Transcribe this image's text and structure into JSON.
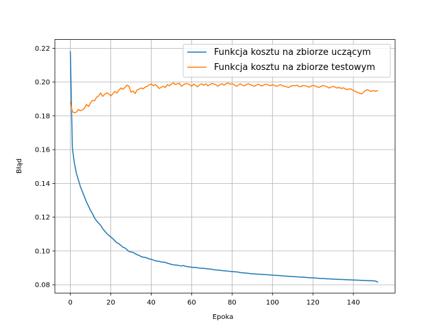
{
  "chart_data": {
    "type": "line",
    "title": "",
    "xlabel": "Epoka",
    "ylabel": "Błąd",
    "xlim": [
      -7.65,
      160.65
    ],
    "ylim": [
      0.0751,
      0.2252
    ],
    "xticks": [
      0,
      20,
      40,
      60,
      80,
      100,
      120,
      140
    ],
    "yticks": [
      0.08,
      0.1,
      0.12,
      0.14,
      0.16,
      0.18,
      0.2,
      0.22
    ],
    "ytick_labels": [
      "0.08",
      "0.10",
      "0.12",
      "0.14",
      "0.16",
      "0.18",
      "0.20",
      "0.22"
    ],
    "grid": true,
    "legend_position": "top-right",
    "series": [
      {
        "name": "Funkcja kosztu na zbiorze uczącym",
        "color": "#1f77b4",
        "x": [
          0,
          1,
          2,
          3,
          4,
          5,
          6,
          7,
          8,
          9,
          10,
          11,
          12,
          13,
          14,
          15,
          16,
          17,
          18,
          19,
          20,
          21,
          22,
          23,
          24,
          25,
          26,
          27,
          28,
          29,
          30,
          31,
          32,
          33,
          34,
          35,
          36,
          37,
          38,
          39,
          40,
          41,
          42,
          43,
          44,
          45,
          46,
          47,
          48,
          49,
          50,
          51,
          52,
          53,
          54,
          55,
          56,
          57,
          58,
          59,
          60,
          61,
          62,
          63,
          64,
          65,
          66,
          67,
          68,
          69,
          70,
          71,
          72,
          73,
          74,
          75,
          76,
          77,
          78,
          79,
          80,
          81,
          82,
          83,
          84,
          85,
          86,
          87,
          88,
          89,
          90,
          91,
          92,
          93,
          94,
          95,
          96,
          97,
          98,
          99,
          100,
          101,
          102,
          103,
          104,
          105,
          106,
          107,
          108,
          109,
          110,
          111,
          112,
          113,
          114,
          115,
          116,
          117,
          118,
          119,
          120,
          121,
          122,
          123,
          124,
          125,
          126,
          127,
          128,
          129,
          130,
          131,
          132,
          133,
          134,
          135,
          136,
          137,
          138,
          139,
          140,
          141,
          142,
          143,
          144,
          145,
          146,
          147,
          148,
          149,
          150,
          151,
          152
        ],
        "values": [
          0.218,
          0.161,
          0.152,
          0.146,
          0.142,
          0.138,
          0.135,
          0.132,
          0.129,
          0.1265,
          0.124,
          0.122,
          0.1195,
          0.1178,
          0.1165,
          0.1152,
          0.1132,
          0.1118,
          0.1104,
          0.1093,
          0.1083,
          0.1073,
          0.1061,
          0.1049,
          0.1043,
          0.1033,
          0.1022,
          0.1018,
          0.1008,
          0.0997,
          0.0995,
          0.0991,
          0.0985,
          0.0978,
          0.0974,
          0.0967,
          0.0963,
          0.0962,
          0.0958,
          0.0953,
          0.0951,
          0.0947,
          0.0942,
          0.094,
          0.0938,
          0.0935,
          0.0934,
          0.0932,
          0.0928,
          0.0924,
          0.0921,
          0.0918,
          0.0917,
          0.0916,
          0.0913,
          0.0911,
          0.0914,
          0.0909,
          0.0907,
          0.0905,
          0.0904,
          0.0902,
          0.0903,
          0.09,
          0.0899,
          0.0897,
          0.0898,
          0.0895,
          0.0894,
          0.0893,
          0.0892,
          0.0889,
          0.0888,
          0.0887,
          0.0886,
          0.0884,
          0.0883,
          0.0882,
          0.0881,
          0.0879,
          0.0878,
          0.0877,
          0.0876,
          0.0875,
          0.0872,
          0.0871,
          0.087,
          0.0869,
          0.0868,
          0.0866,
          0.0865,
          0.0864,
          0.0863,
          0.0863,
          0.0862,
          0.0861,
          0.086,
          0.086,
          0.0859,
          0.0858,
          0.0857,
          0.0856,
          0.0856,
          0.0855,
          0.0854,
          0.0853,
          0.0852,
          0.0851,
          0.085,
          0.0849,
          0.0849,
          0.0848,
          0.0847,
          0.0846,
          0.0845,
          0.0845,
          0.0844,
          0.0843,
          0.0842,
          0.0841,
          0.0841,
          0.084,
          0.0839,
          0.0838,
          0.0837,
          0.0837,
          0.0836,
          0.0835,
          0.0835,
          0.0834,
          0.0833,
          0.0833,
          0.0832,
          0.0832,
          0.0831,
          0.0831,
          0.083,
          0.083,
          0.0829,
          0.0829,
          0.0828,
          0.0828,
          0.0827,
          0.0827,
          0.0826,
          0.0826,
          0.0825,
          0.0825,
          0.0824,
          0.0824,
          0.0823,
          0.0822,
          0.0816
        ]
      },
      {
        "name": "Funkcja kosztu na zbiorze testowym",
        "color": "#ff7f0e",
        "x": [
          0,
          1,
          2,
          3,
          4,
          5,
          6,
          7,
          8,
          9,
          10,
          11,
          12,
          13,
          14,
          15,
          16,
          17,
          18,
          19,
          20,
          21,
          22,
          23,
          24,
          25,
          26,
          27,
          28,
          29,
          30,
          31,
          32,
          33,
          34,
          35,
          36,
          37,
          38,
          39,
          40,
          41,
          42,
          43,
          44,
          45,
          46,
          47,
          48,
          49,
          50,
          51,
          52,
          53,
          54,
          55,
          56,
          57,
          58,
          59,
          60,
          61,
          62,
          63,
          64,
          65,
          66,
          67,
          68,
          69,
          70,
          71,
          72,
          73,
          74,
          75,
          76,
          77,
          78,
          79,
          80,
          81,
          82,
          83,
          84,
          85,
          86,
          87,
          88,
          89,
          90,
          91,
          92,
          93,
          94,
          95,
          96,
          97,
          98,
          99,
          100,
          101,
          102,
          103,
          104,
          105,
          106,
          107,
          108,
          109,
          110,
          111,
          112,
          113,
          114,
          115,
          116,
          117,
          118,
          119,
          120,
          121,
          122,
          123,
          124,
          125,
          126,
          127,
          128,
          129,
          130,
          131,
          132,
          133,
          134,
          135,
          136,
          137,
          138,
          139,
          140,
          141,
          142,
          143,
          144,
          145,
          146,
          147,
          148,
          149,
          150,
          151,
          152
        ],
        "values": [
          0.188,
          0.1825,
          0.1818,
          0.1822,
          0.1838,
          0.183,
          0.1836,
          0.1845,
          0.1868,
          0.1856,
          0.1878,
          0.1892,
          0.189,
          0.191,
          0.1918,
          0.1935,
          0.1915,
          0.1928,
          0.1936,
          0.193,
          0.1918,
          0.193,
          0.1945,
          0.1935,
          0.1952,
          0.1965,
          0.1957,
          0.1968,
          0.1982,
          0.1975,
          0.194,
          0.1947,
          0.1932,
          0.1953,
          0.1958,
          0.1965,
          0.196,
          0.197,
          0.1975,
          0.1983,
          0.199,
          0.1978,
          0.1986,
          0.1975,
          0.1962,
          0.197,
          0.1975,
          0.1968,
          0.1985,
          0.1978,
          0.1988,
          0.1995,
          0.1985,
          0.199,
          0.1993,
          0.1975,
          0.1985,
          0.199,
          0.199,
          0.1985,
          0.1975,
          0.1988,
          0.198,
          0.1972,
          0.1985,
          0.199,
          0.198,
          0.199,
          0.1978,
          0.1985,
          0.1992,
          0.1988,
          0.1985,
          0.1975,
          0.1985,
          0.199,
          0.1982,
          0.199,
          0.1995,
          0.1988,
          0.199,
          0.1985,
          0.1975,
          0.198,
          0.199,
          0.1982,
          0.1978,
          0.1985,
          0.199,
          0.1985,
          0.198,
          0.1975,
          0.1982,
          0.1988,
          0.198,
          0.1978,
          0.1985,
          0.1987,
          0.1982,
          0.1978,
          0.1985,
          0.198,
          0.1975,
          0.198,
          0.1985,
          0.1978,
          0.1975,
          0.1972,
          0.1968,
          0.1975,
          0.198,
          0.1978,
          0.1982,
          0.1975,
          0.1972,
          0.198,
          0.1978,
          0.1975,
          0.197,
          0.1975,
          0.198,
          0.1978,
          0.1972,
          0.1968,
          0.1975,
          0.198,
          0.1976,
          0.1972,
          0.1965,
          0.197,
          0.1975,
          0.197,
          0.1965,
          0.1968,
          0.1962,
          0.1966,
          0.196,
          0.1955,
          0.196,
          0.1958,
          0.195,
          0.1945,
          0.1938,
          0.1935,
          0.193,
          0.194,
          0.195,
          0.1955,
          0.1948,
          0.1945,
          0.195,
          0.1945,
          0.195
        ]
      }
    ]
  }
}
